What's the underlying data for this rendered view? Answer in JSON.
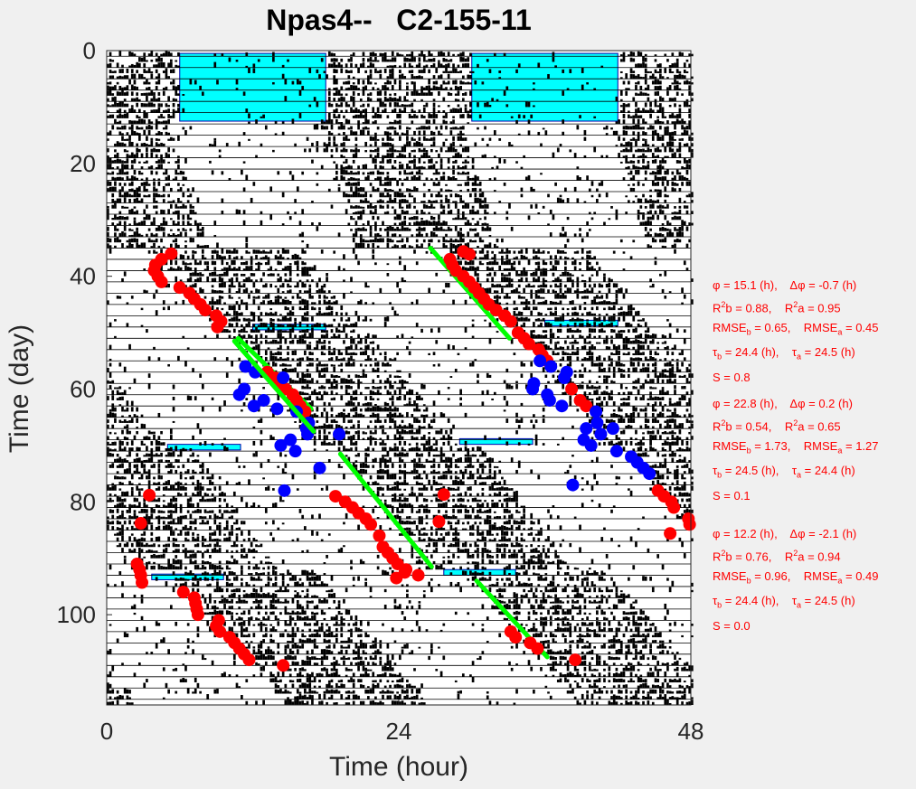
{
  "chart_data": {
    "type": "scatter",
    "title": "Npas4--   C2-155-11",
    "xlabel": "Time (hour)",
    "ylabel": "Time (day)",
    "xlim": [
      0,
      48
    ],
    "ylim": [
      0,
      116
    ],
    "y_reversed": true,
    "xticks": [
      0,
      24,
      48
    ],
    "yticks": [
      0,
      20,
      40,
      60,
      80,
      100
    ],
    "grid": false,
    "colors": {
      "background": "#f0f0f0",
      "plot_bg": "#ffffff",
      "activity": "#000000",
      "light_shade": "#00ffff",
      "onset_points": "#ff0000",
      "outlier_points": "#0000ff",
      "fit_line": "#00ff00",
      "annotation_text": "#ff0000"
    },
    "shaded_boxes": [
      {
        "x": [
          6,
          18
        ],
        "y": [
          0.5,
          12.5
        ]
      },
      {
        "x": [
          30,
          42
        ],
        "y": [
          0.5,
          12.5
        ]
      },
      {
        "x": [
          12,
          18
        ],
        "y": [
          48.5,
          49.5
        ]
      },
      {
        "x": [
          36,
          42
        ],
        "y": [
          47.8,
          48.8
        ]
      },
      {
        "x": [
          5,
          11
        ],
        "y": [
          69.8,
          70.8
        ]
      },
      {
        "x": [
          29,
          35
        ],
        "y": [
          68.8,
          69.8
        ]
      },
      {
        "x": [
          3.7,
          9.6
        ],
        "y": [
          92.8,
          93.8
        ]
      },
      {
        "x": [
          27.7,
          33.6
        ],
        "y": [
          92,
          93
        ]
      }
    ],
    "series": [
      {
        "kind": "onsets",
        "color": "#ff0000",
        "points": [
          [
            5.3,
            36
          ],
          [
            4.5,
            37
          ],
          [
            4,
            38
          ],
          [
            3.9,
            39
          ],
          [
            4.2,
            40
          ],
          [
            4.5,
            41
          ],
          [
            6,
            42
          ],
          [
            6.8,
            43
          ],
          [
            7.2,
            44
          ],
          [
            7.7,
            45
          ],
          [
            8.1,
            46
          ],
          [
            9,
            47
          ],
          [
            9.4,
            48
          ],
          [
            9.1,
            49
          ],
          [
            13.2,
            57
          ],
          [
            13.8,
            58
          ],
          [
            14.3,
            59
          ],
          [
            14.7,
            60
          ],
          [
            15.3,
            61
          ],
          [
            15.6,
            62
          ],
          [
            15.9,
            63
          ],
          [
            16.3,
            64
          ],
          [
            18.8,
            79
          ],
          [
            19.6,
            80
          ],
          [
            20.2,
            81
          ],
          [
            20.7,
            82
          ],
          [
            21.3,
            83
          ],
          [
            21.7,
            84
          ],
          [
            22.4,
            86
          ],
          [
            22.7,
            88
          ],
          [
            23.1,
            89
          ],
          [
            23.5,
            90
          ],
          [
            23.9,
            91
          ],
          [
            24.6,
            92
          ],
          [
            25.6,
            93
          ],
          [
            3.5,
            78.8
          ],
          [
            2.8,
            83.8
          ],
          [
            2.5,
            91
          ],
          [
            2.7,
            92
          ],
          [
            2.8,
            93
          ],
          [
            2.9,
            94.3
          ],
          [
            6.3,
            96
          ],
          [
            7.2,
            97
          ],
          [
            7.3,
            98
          ],
          [
            7.4,
            99
          ],
          [
            7.5,
            100
          ],
          [
            9.2,
            101
          ],
          [
            9,
            102
          ],
          [
            9.3,
            103
          ],
          [
            10.1,
            104
          ],
          [
            10.5,
            105
          ],
          [
            10.9,
            106
          ],
          [
            11.3,
            107
          ],
          [
            11.7,
            108
          ],
          [
            14.5,
            109
          ],
          [
            28.2,
            37
          ],
          [
            28.4,
            38
          ],
          [
            28.7,
            39
          ],
          [
            29.3,
            40
          ],
          [
            29.8,
            41
          ],
          [
            30.2,
            42
          ],
          [
            30.6,
            43
          ],
          [
            31,
            44
          ],
          [
            31.4,
            45
          ],
          [
            32,
            46
          ],
          [
            32.7,
            47
          ],
          [
            33.2,
            48
          ],
          [
            33.8,
            50
          ],
          [
            34.3,
            51
          ],
          [
            34.7,
            52
          ],
          [
            35.5,
            53
          ],
          [
            35.8,
            54
          ],
          [
            36.2,
            55
          ],
          [
            38.2,
            60
          ],
          [
            38.9,
            62
          ],
          [
            39.4,
            63
          ],
          [
            29.3,
            35.6
          ],
          [
            29.8,
            36.1
          ],
          [
            27.3,
            83.5
          ],
          [
            27.7,
            78.7
          ],
          [
            23.8,
            93.5
          ],
          [
            24.5,
            92.5
          ],
          [
            33.2,
            103
          ],
          [
            33.6,
            104
          ],
          [
            34.8,
            105
          ],
          [
            35.4,
            106
          ],
          [
            38.5,
            108
          ],
          [
            45.3,
            78
          ],
          [
            45.8,
            79
          ],
          [
            46.4,
            80
          ],
          [
            46.6,
            81
          ],
          [
            47.8,
            83
          ],
          [
            47.9,
            84
          ],
          [
            46.3,
            85.6
          ]
        ]
      },
      {
        "kind": "outliers",
        "color": "#0000ff",
        "points": [
          [
            11.4,
            56
          ],
          [
            12.2,
            57
          ],
          [
            14.5,
            58
          ],
          [
            11.3,
            60
          ],
          [
            10.9,
            61
          ],
          [
            12.9,
            62
          ],
          [
            12.1,
            63
          ],
          [
            14,
            63.5
          ],
          [
            15.6,
            64
          ],
          [
            16.6,
            66
          ],
          [
            16.4,
            67
          ],
          [
            16.5,
            68
          ],
          [
            15.1,
            69
          ],
          [
            14.3,
            70
          ],
          [
            15.5,
            71
          ],
          [
            17.5,
            74
          ],
          [
            14.6,
            78
          ],
          [
            19.1,
            68
          ],
          [
            35.6,
            55
          ],
          [
            36.5,
            56
          ],
          [
            37.8,
            57
          ],
          [
            37.6,
            58
          ],
          [
            35.1,
            59
          ],
          [
            35,
            60
          ],
          [
            36.2,
            61
          ],
          [
            36.4,
            62
          ],
          [
            37.4,
            63
          ],
          [
            40.2,
            64
          ],
          [
            40.3,
            66
          ],
          [
            39.4,
            67
          ],
          [
            40.6,
            68
          ],
          [
            39.2,
            69
          ],
          [
            39.8,
            70
          ],
          [
            41.9,
            71
          ],
          [
            43.1,
            72
          ],
          [
            43.6,
            73
          ],
          [
            44.1,
            74
          ],
          [
            44.6,
            75
          ],
          [
            41.6,
            67
          ],
          [
            38.3,
            77
          ]
        ]
      }
    ],
    "fit_lines": [
      {
        "x": [
          10.5,
          17
        ],
        "y": [
          51.5,
          67.5
        ]
      },
      {
        "x": [
          19.2,
          26.7
        ],
        "y": [
          71.5,
          91.5
        ]
      },
      {
        "x": [
          26.6,
          33.1
        ],
        "y": [
          35,
          51
        ]
      },
      {
        "x": [
          30.4,
          36.2
        ],
        "y": [
          94,
          107.5
        ]
      },
      {
        "x": [
          10.8,
          16.8
        ],
        "y": [
          51,
          63.5
        ]
      }
    ],
    "annotations": [
      {
        "phi": "15.1",
        "dphi": "-0.7",
        "r2b": "0.88",
        "r2a": "0.95",
        "rmseb": "0.65",
        "rmsea": "0.45",
        "taub": "24.4",
        "taua": "24.5",
        "s": "0.8"
      },
      {
        "phi": "22.8",
        "dphi": "0.2",
        "r2b": "0.54",
        "r2a": "0.65",
        "rmseb": "1.73",
        "rmsea": "1.27",
        "taub": "24.5",
        "taua": "24.4",
        "s": "0.1"
      },
      {
        "phi": "12.2",
        "dphi": "-2.1",
        "r2b": "0.76",
        "r2a": "0.94",
        "rmseb": "0.96",
        "rmsea": "0.49",
        "taub": "24.4",
        "taua": "24.5",
        "s": "0.0"
      }
    ]
  }
}
